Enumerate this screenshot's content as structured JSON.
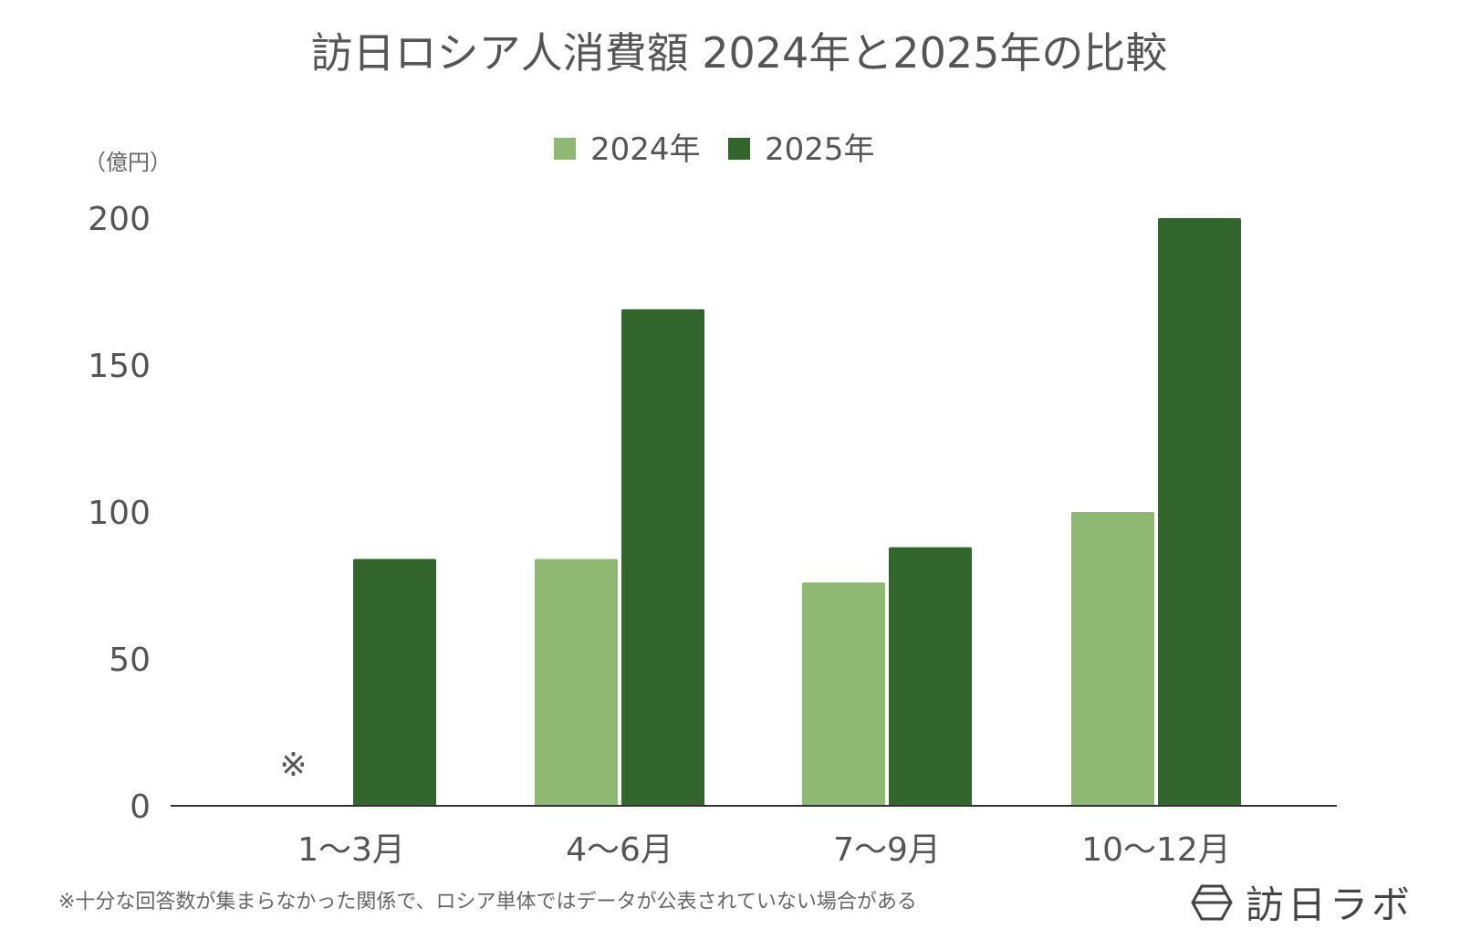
{
  "chart_data": {
    "type": "bar",
    "title": "訪日ロシア人消費額 2024年と2025年の比較",
    "ylabel": "（億円）",
    "xlabel": "",
    "categories": [
      "1〜3月",
      "4〜6月",
      "7〜9月",
      "10〜12月"
    ],
    "series": [
      {
        "name": "2024年",
        "color": "#8fb872",
        "values": [
          null,
          84,
          76,
          100
        ]
      },
      {
        "name": "2025年",
        "color": "#33662c",
        "values": [
          84,
          169,
          88,
          200
        ]
      }
    ],
    "ylim": [
      0,
      200
    ],
    "yticks": [
      0,
      50,
      100,
      150,
      200
    ],
    "grid": false,
    "legend": "top-center",
    "missing_marker": "※",
    "footnote": "※十分な回答数が集まらなかった関係で、ロシア単体ではデータが公表されていない場合がある"
  },
  "brand": {
    "logo_text": "訪日ラボ"
  }
}
